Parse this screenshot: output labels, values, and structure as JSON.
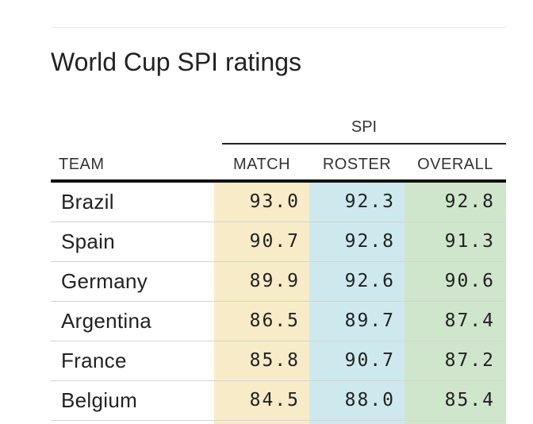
{
  "title": "World Cup SPI ratings",
  "group_header": "SPI",
  "columns": {
    "team": "TEAM",
    "match": "MATCH",
    "roster": "ROSTER",
    "overall": "OVERALL"
  },
  "colors": {
    "match_bg": "#f8ebc8",
    "roster_bg": "#cde9ee",
    "overall_bg": "#cfe6cc"
  },
  "rows": [
    {
      "team": "Brazil",
      "match": "93.0",
      "roster": "92.3",
      "overall": "92.8"
    },
    {
      "team": "Spain",
      "match": "90.7",
      "roster": "92.8",
      "overall": "91.3"
    },
    {
      "team": "Germany",
      "match": "89.9",
      "roster": "92.6",
      "overall": "90.6"
    },
    {
      "team": "Argentina",
      "match": "86.5",
      "roster": "89.7",
      "overall": "87.4"
    },
    {
      "team": "France",
      "match": "85.8",
      "roster": "90.7",
      "overall": "87.2"
    },
    {
      "team": "Belgium",
      "match": "84.5",
      "roster": "88.0",
      "overall": "85.4"
    }
  ]
}
